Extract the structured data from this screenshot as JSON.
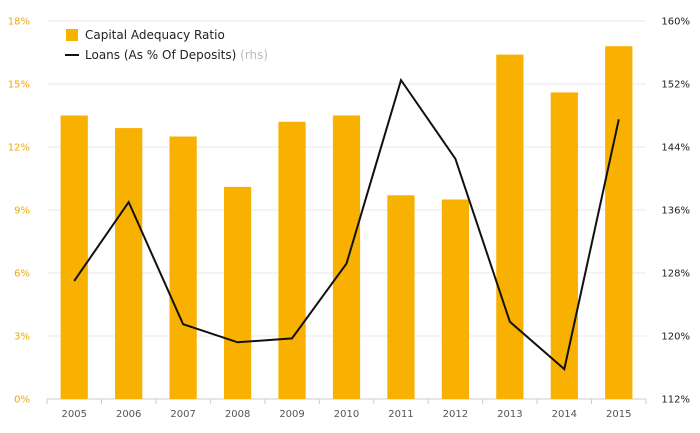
{
  "chart_data": {
    "type": "bar",
    "categories": [
      "2005",
      "2006",
      "2007",
      "2008",
      "2009",
      "2010",
      "2011",
      "2012",
      "2013",
      "2014",
      "2015"
    ],
    "series": [
      {
        "name": "Capital Adequacy Ratio",
        "type": "bar",
        "axis": "left",
        "color": "#f8b100",
        "values": [
          13.5,
          12.9,
          12.5,
          10.1,
          13.2,
          13.5,
          9.7,
          9.5,
          16.4,
          14.6,
          16.8
        ]
      },
      {
        "name": "Loans (As % Of Deposits)",
        "name_note": "(rhs)",
        "type": "line",
        "axis": "right",
        "color": "#111111",
        "values": [
          127,
          137,
          121.5,
          119.2,
          119.7,
          129.2,
          152.5,
          142.5,
          121.8,
          115.8,
          147.5
        ]
      }
    ],
    "y_left": {
      "ylim": [
        0,
        18
      ],
      "ticks": [
        0,
        3,
        6,
        9,
        12,
        15,
        18
      ],
      "tick_labels": [
        "0%",
        "3%",
        "6%",
        "9%",
        "12%",
        "15%",
        "18%"
      ],
      "color": "#f2a900"
    },
    "y_right": {
      "ylim": [
        112,
        160
      ],
      "ticks": [
        112,
        120,
        128,
        136,
        144,
        152,
        160
      ],
      "tick_labels": [
        "112%",
        "120%",
        "128%",
        "136%",
        "144%",
        "152%",
        "160%"
      ],
      "color": "#222222"
    },
    "grid": true,
    "legend": "top-left"
  }
}
